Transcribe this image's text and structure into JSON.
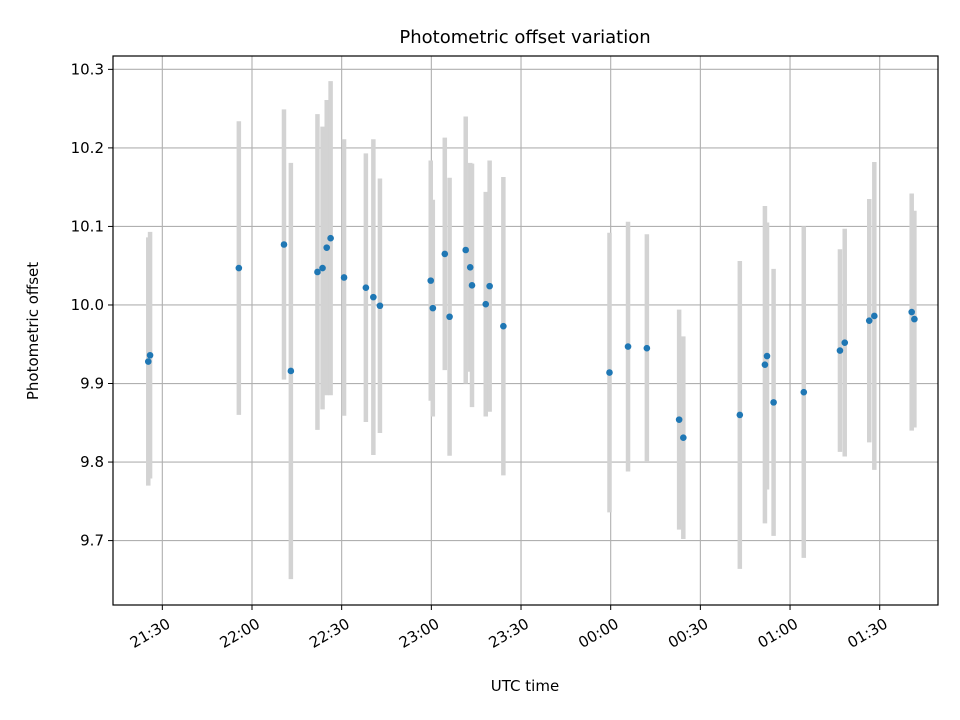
{
  "chart_data": {
    "type": "scatter",
    "title": "Photometric offset variation",
    "xlabel": "UTC time",
    "ylabel": "Photometric offset",
    "x_tick_labels": [
      "21:30",
      "22:00",
      "22:30",
      "23:00",
      "23:30",
      "00:00",
      "00:30",
      "01:00",
      "01:30"
    ],
    "x_tick_minutes": [
      0,
      30,
      60,
      90,
      120,
      150,
      180,
      210,
      240
    ],
    "x_axis_origin": "21:30",
    "xlim_minutes": [
      -16.5,
      259.5
    ],
    "y_ticks": [
      9.7,
      9.8,
      9.9,
      10.0,
      10.1,
      10.2,
      10.3
    ],
    "y_tick_labels": [
      "9.7",
      "9.8",
      "9.9",
      "10.0",
      "10.1",
      "10.2",
      "10.3"
    ],
    "ylim": [
      9.618,
      10.317
    ],
    "grid": true,
    "point_color": "#1f77b4",
    "errorbar_color": "#d3d3d3",
    "series": [
      {
        "points": [
          {
            "x": -4.7,
            "y": 9.928,
            "yerr": 0.158
          },
          {
            "x": -4.1,
            "y": 9.936,
            "yerr": 0.157
          },
          {
            "x": 25.6,
            "y": 10.047,
            "yerr": 0.187
          },
          {
            "x": 40.7,
            "y": 10.077,
            "yerr": 0.172
          },
          {
            "x": 43.0,
            "y": 9.916,
            "yerr": 0.265
          },
          {
            "x": 51.9,
            "y": 10.042,
            "yerr": 0.201
          },
          {
            "x": 53.6,
            "y": 10.047,
            "yerr": 0.18
          },
          {
            "x": 55.0,
            "y": 10.073,
            "yerr": 0.188
          },
          {
            "x": 56.3,
            "y": 10.085,
            "yerr": 0.2
          },
          {
            "x": 60.8,
            "y": 10.035,
            "yerr": 0.176
          },
          {
            "x": 68.1,
            "y": 10.022,
            "yerr": 0.171
          },
          {
            "x": 70.6,
            "y": 10.01,
            "yerr": 0.201
          },
          {
            "x": 72.8,
            "y": 9.999,
            "yerr": 0.162
          },
          {
            "x": 89.8,
            "y": 10.031,
            "yerr": 0.153
          },
          {
            "x": 90.5,
            "y": 9.996,
            "yerr": 0.138
          },
          {
            "x": 94.5,
            "y": 10.065,
            "yerr": 0.148
          },
          {
            "x": 96.1,
            "y": 9.985,
            "yerr": 0.177
          },
          {
            "x": 101.5,
            "y": 10.07,
            "yerr": 0.17
          },
          {
            "x": 103.0,
            "y": 10.048,
            "yerr": 0.133
          },
          {
            "x": 103.6,
            "y": 10.025,
            "yerr": 0.155
          },
          {
            "x": 108.2,
            "y": 10.001,
            "yerr": 0.143
          },
          {
            "x": 109.5,
            "y": 10.024,
            "yerr": 0.16
          },
          {
            "x": 114.1,
            "y": 9.973,
            "yerr": 0.19
          },
          {
            "x": 149.6,
            "y": 9.914,
            "yerr": 0.178
          },
          {
            "x": 155.8,
            "y": 9.947,
            "yerr": 0.159
          },
          {
            "x": 162.1,
            "y": 9.945,
            "yerr": 0.145
          },
          {
            "x": 172.9,
            "y": 9.854,
            "yerr": 0.14
          },
          {
            "x": 174.3,
            "y": 9.831,
            "yerr": 0.129
          },
          {
            "x": 193.2,
            "y": 9.86,
            "yerr": 0.196
          },
          {
            "x": 201.6,
            "y": 9.924,
            "yerr": 0.202
          },
          {
            "x": 202.3,
            "y": 9.935,
            "yerr": 0.17
          },
          {
            "x": 204.5,
            "y": 9.876,
            "yerr": 0.17
          },
          {
            "x": 214.6,
            "y": 9.889,
            "yerr": 0.211
          },
          {
            "x": 226.7,
            "y": 9.942,
            "yerr": 0.129
          },
          {
            "x": 228.3,
            "y": 9.952,
            "yerr": 0.145
          },
          {
            "x": 236.5,
            "y": 9.98,
            "yerr": 0.155
          },
          {
            "x": 238.2,
            "y": 9.986,
            "yerr": 0.196
          },
          {
            "x": 250.7,
            "y": 9.991,
            "yerr": 0.151
          },
          {
            "x": 251.6,
            "y": 9.982,
            "yerr": 0.138
          }
        ]
      }
    ]
  }
}
